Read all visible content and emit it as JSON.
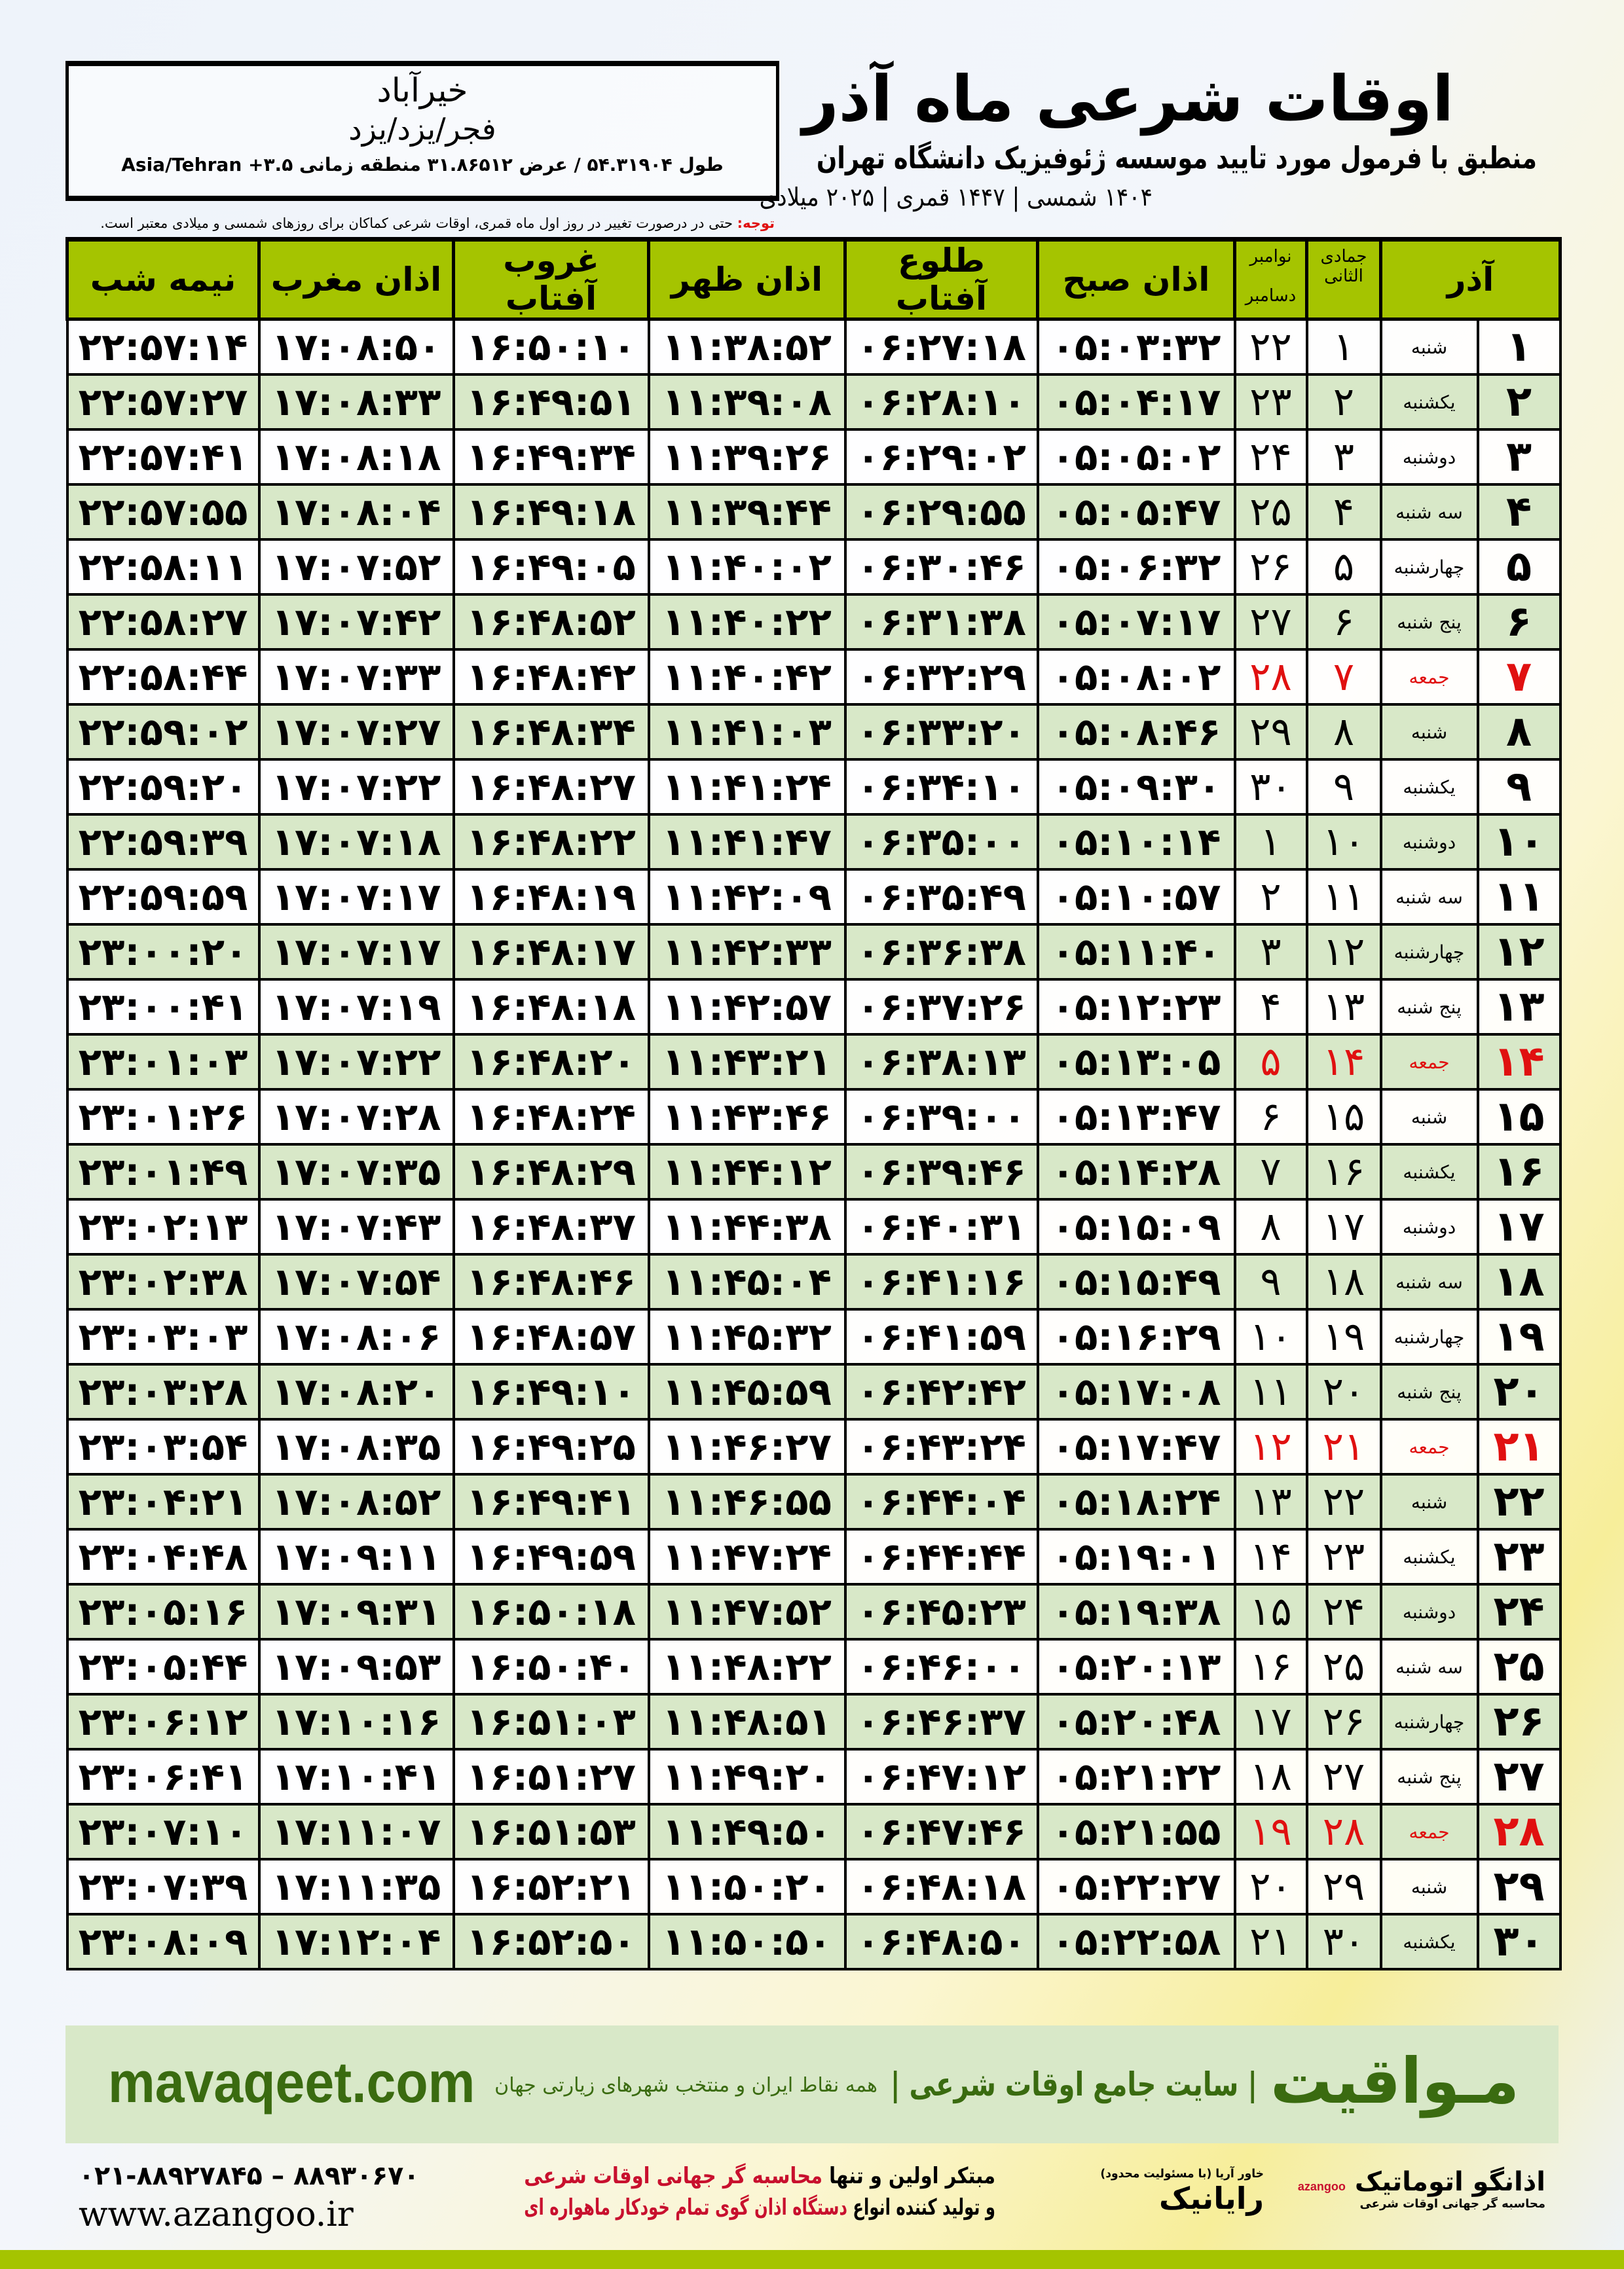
{
  "header": {
    "city": "خیرآباد",
    "path": "فجر/یزد/یزد",
    "coords": "طول ۵۴.۳۱۹۰۴ / عرض ۳۱.۸۶۵۱۲ منطقه زمانی ۳.۵+ Asia/Tehran",
    "title": "اوقات شرعی ماه آذر",
    "subtitle": "منطبق با فرمول مورد تایید موسسه ژئوفیزیک دانشگاه تهران",
    "dateline": "۱۴۰۴ شمسی | ۱۴۴۷ قمری | ۲۰۲۵ میلادی",
    "note_label": "توجه:",
    "note": " حتی در درصورت تغییر در روز اول ماه قمری، اوقات شرعی کماکان برای روزهای شمسی و میلادی معتبر است."
  },
  "columns": {
    "month": "آذر",
    "hijri": "جمادی الثانی",
    "greg_top": "نوامبر",
    "greg_bottom": "دسامبر",
    "sobh": "اذان صبح",
    "tolu": "طلوع آفتاب",
    "zohr": "اذان ظهر",
    "ghurub": "غروب آفتاب",
    "maghrib": "اذان مغرب",
    "nimeh": "نیمه شب"
  },
  "colors": {
    "accent": "#a5c400",
    "row_alt": "#d8e8c8",
    "friday": "#e01010",
    "brand": "#3a6b10"
  },
  "rows": [
    [
      "۱",
      "شنبه",
      "۱",
      "۲۲",
      "۰۵:۰۳:۳۲",
      "۰۶:۲۷:۱۸",
      "۱۱:۳۸:۵۲",
      "۱۶:۵۰:۱۰",
      "۱۷:۰۸:۵۰",
      "۲۲:۵۷:۱۴"
    ],
    [
      "۲",
      "یکشنبه",
      "۲",
      "۲۳",
      "۰۵:۰۴:۱۷",
      "۰۶:۲۸:۱۰",
      "۱۱:۳۹:۰۸",
      "۱۶:۴۹:۵۱",
      "۱۷:۰۸:۳۳",
      "۲۲:۵۷:۲۷"
    ],
    [
      "۳",
      "دوشنبه",
      "۳",
      "۲۴",
      "۰۵:۰۵:۰۲",
      "۰۶:۲۹:۰۲",
      "۱۱:۳۹:۲۶",
      "۱۶:۴۹:۳۴",
      "۱۷:۰۸:۱۸",
      "۲۲:۵۷:۴۱"
    ],
    [
      "۴",
      "سه شنبه",
      "۴",
      "۲۵",
      "۰۵:۰۵:۴۷",
      "۰۶:۲۹:۵۵",
      "۱۱:۳۹:۴۴",
      "۱۶:۴۹:۱۸",
      "۱۷:۰۸:۰۴",
      "۲۲:۵۷:۵۵"
    ],
    [
      "۵",
      "چهارشنبه",
      "۵",
      "۲۶",
      "۰۵:۰۶:۳۲",
      "۰۶:۳۰:۴۶",
      "۱۱:۴۰:۰۲",
      "۱۶:۴۹:۰۵",
      "۱۷:۰۷:۵۲",
      "۲۲:۵۸:۱۱"
    ],
    [
      "۶",
      "پنج شنبه",
      "۶",
      "۲۷",
      "۰۵:۰۷:۱۷",
      "۰۶:۳۱:۳۸",
      "۱۱:۴۰:۲۲",
      "۱۶:۴۸:۵۲",
      "۱۷:۰۷:۴۲",
      "۲۲:۵۸:۲۷"
    ],
    [
      "۷",
      "جمعه",
      "۷",
      "۲۸",
      "۰۵:۰۸:۰۲",
      "۰۶:۳۲:۲۹",
      "۱۱:۴۰:۴۲",
      "۱۶:۴۸:۴۲",
      "۱۷:۰۷:۳۳",
      "۲۲:۵۸:۴۴"
    ],
    [
      "۸",
      "شنبه",
      "۸",
      "۲۹",
      "۰۵:۰۸:۴۶",
      "۰۶:۳۳:۲۰",
      "۱۱:۴۱:۰۳",
      "۱۶:۴۸:۳۴",
      "۱۷:۰۷:۲۷",
      "۲۲:۵۹:۰۲"
    ],
    [
      "۹",
      "یکشنبه",
      "۹",
      "۳۰",
      "۰۵:۰۹:۳۰",
      "۰۶:۳۴:۱۰",
      "۱۱:۴۱:۲۴",
      "۱۶:۴۸:۲۷",
      "۱۷:۰۷:۲۲",
      "۲۲:۵۹:۲۰"
    ],
    [
      "۱۰",
      "دوشنبه",
      "۱۰",
      "۱",
      "۰۵:۱۰:۱۴",
      "۰۶:۳۵:۰۰",
      "۱۱:۴۱:۴۷",
      "۱۶:۴۸:۲۲",
      "۱۷:۰۷:۱۸",
      "۲۲:۵۹:۳۹"
    ],
    [
      "۱۱",
      "سه شنبه",
      "۱۱",
      "۲",
      "۰۵:۱۰:۵۷",
      "۰۶:۳۵:۴۹",
      "۱۱:۴۲:۰۹",
      "۱۶:۴۸:۱۹",
      "۱۷:۰۷:۱۷",
      "۲۲:۵۹:۵۹"
    ],
    [
      "۱۲",
      "چهارشنبه",
      "۱۲",
      "۳",
      "۰۵:۱۱:۴۰",
      "۰۶:۳۶:۳۸",
      "۱۱:۴۲:۳۳",
      "۱۶:۴۸:۱۷",
      "۱۷:۰۷:۱۷",
      "۲۳:۰۰:۲۰"
    ],
    [
      "۱۳",
      "پنج شنبه",
      "۱۳",
      "۴",
      "۰۵:۱۲:۲۳",
      "۰۶:۳۷:۲۶",
      "۱۱:۴۲:۵۷",
      "۱۶:۴۸:۱۸",
      "۱۷:۰۷:۱۹",
      "۲۳:۰۰:۴۱"
    ],
    [
      "۱۴",
      "جمعه",
      "۱۴",
      "۵",
      "۰۵:۱۳:۰۵",
      "۰۶:۳۸:۱۳",
      "۱۱:۴۳:۲۱",
      "۱۶:۴۸:۲۰",
      "۱۷:۰۷:۲۲",
      "۲۳:۰۱:۰۳"
    ],
    [
      "۱۵",
      "شنبه",
      "۱۵",
      "۶",
      "۰۵:۱۳:۴۷",
      "۰۶:۳۹:۰۰",
      "۱۱:۴۳:۴۶",
      "۱۶:۴۸:۲۴",
      "۱۷:۰۷:۲۸",
      "۲۳:۰۱:۲۶"
    ],
    [
      "۱۶",
      "یکشنبه",
      "۱۶",
      "۷",
      "۰۵:۱۴:۲۸",
      "۰۶:۳۹:۴۶",
      "۱۱:۴۴:۱۲",
      "۱۶:۴۸:۲۹",
      "۱۷:۰۷:۳۵",
      "۲۳:۰۱:۴۹"
    ],
    [
      "۱۷",
      "دوشنبه",
      "۱۷",
      "۸",
      "۰۵:۱۵:۰۹",
      "۰۶:۴۰:۳۱",
      "۱۱:۴۴:۳۸",
      "۱۶:۴۸:۳۷",
      "۱۷:۰۷:۴۳",
      "۲۳:۰۲:۱۳"
    ],
    [
      "۱۸",
      "سه شنبه",
      "۱۸",
      "۹",
      "۰۵:۱۵:۴۹",
      "۰۶:۴۱:۱۶",
      "۱۱:۴۵:۰۴",
      "۱۶:۴۸:۴۶",
      "۱۷:۰۷:۵۴",
      "۲۳:۰۲:۳۸"
    ],
    [
      "۱۹",
      "چهارشنبه",
      "۱۹",
      "۱۰",
      "۰۵:۱۶:۲۹",
      "۰۶:۴۱:۵۹",
      "۱۱:۴۵:۳۲",
      "۱۶:۴۸:۵۷",
      "۱۷:۰۸:۰۶",
      "۲۳:۰۳:۰۳"
    ],
    [
      "۲۰",
      "پنج شنبه",
      "۲۰",
      "۱۱",
      "۰۵:۱۷:۰۸",
      "۰۶:۴۲:۴۲",
      "۱۱:۴۵:۵۹",
      "۱۶:۴۹:۱۰",
      "۱۷:۰۸:۲۰",
      "۲۳:۰۳:۲۸"
    ],
    [
      "۲۱",
      "جمعه",
      "۲۱",
      "۱۲",
      "۰۵:۱۷:۴۷",
      "۰۶:۴۳:۲۴",
      "۱۱:۴۶:۲۷",
      "۱۶:۴۹:۲۵",
      "۱۷:۰۸:۳۵",
      "۲۳:۰۳:۵۴"
    ],
    [
      "۲۲",
      "شنبه",
      "۲۲",
      "۱۳",
      "۰۵:۱۸:۲۴",
      "۰۶:۴۴:۰۴",
      "۱۱:۴۶:۵۵",
      "۱۶:۴۹:۴۱",
      "۱۷:۰۸:۵۲",
      "۲۳:۰۴:۲۱"
    ],
    [
      "۲۳",
      "یکشنبه",
      "۲۳",
      "۱۴",
      "۰۵:۱۹:۰۱",
      "۰۶:۴۴:۴۴",
      "۱۱:۴۷:۲۴",
      "۱۶:۴۹:۵۹",
      "۱۷:۰۹:۱۱",
      "۲۳:۰۴:۴۸"
    ],
    [
      "۲۴",
      "دوشنبه",
      "۲۴",
      "۱۵",
      "۰۵:۱۹:۳۸",
      "۰۶:۴۵:۲۳",
      "۱۱:۴۷:۵۲",
      "۱۶:۵۰:۱۸",
      "۱۷:۰۹:۳۱",
      "۲۳:۰۵:۱۶"
    ],
    [
      "۲۵",
      "سه شنبه",
      "۲۵",
      "۱۶",
      "۰۵:۲۰:۱۳",
      "۰۶:۴۶:۰۰",
      "۱۱:۴۸:۲۲",
      "۱۶:۵۰:۴۰",
      "۱۷:۰۹:۵۳",
      "۲۳:۰۵:۴۴"
    ],
    [
      "۲۶",
      "چهارشنبه",
      "۲۶",
      "۱۷",
      "۰۵:۲۰:۴۸",
      "۰۶:۴۶:۳۷",
      "۱۱:۴۸:۵۱",
      "۱۶:۵۱:۰۳",
      "۱۷:۱۰:۱۶",
      "۲۳:۰۶:۱۲"
    ],
    [
      "۲۷",
      "پنج شنبه",
      "۲۷",
      "۱۸",
      "۰۵:۲۱:۲۲",
      "۰۶:۴۷:۱۲",
      "۱۱:۴۹:۲۰",
      "۱۶:۵۱:۲۷",
      "۱۷:۱۰:۴۱",
      "۲۳:۰۶:۴۱"
    ],
    [
      "۲۸",
      "جمعه",
      "۲۸",
      "۱۹",
      "۰۵:۲۱:۵۵",
      "۰۶:۴۷:۴۶",
      "۱۱:۴۹:۵۰",
      "۱۶:۵۱:۵۳",
      "۱۷:۱۱:۰۷",
      "۲۳:۰۷:۱۰"
    ],
    [
      "۲۹",
      "شنبه",
      "۲۹",
      "۲۰",
      "۰۵:۲۲:۲۷",
      "۰۶:۴۸:۱۸",
      "۱۱:۵۰:۲۰",
      "۱۶:۵۲:۲۱",
      "۱۷:۱۱:۳۵",
      "۲۳:۰۷:۳۹"
    ],
    [
      "۳۰",
      "یکشنبه",
      "۳۰",
      "۲۱",
      "۰۵:۲۲:۵۸",
      "۰۶:۴۸:۵۰",
      "۱۱:۵۰:۵۰",
      "۱۶:۵۲:۵۰",
      "۱۷:۱۲:۰۴",
      "۲۳:۰۸:۰۹"
    ]
  ],
  "friday_label": "جمعه",
  "footer": {
    "brand": "مـواقیت",
    "tagline": "| سایت جامع اوقات شرعی |",
    "tagline2": "همه نقاط ایران و منتخب شهرهای زیارتی جهان",
    "site": "mavaqeet.com",
    "phone": "۰۲۱-۸۸۹۲۷۸۴۵ – ۸۸۹۳۰۶۷۰",
    "www": "www.azangoo.ir",
    "promo1a": "مبتکر اولین و تنها ",
    "promo1b": "محاسبه گر جهانی اوقات شرعی",
    "promo2a": "و تولید کننده انواع ",
    "promo2b": "دستگاه اذان گوی تمام خودکار ماهواره ای",
    "logo1": "رایانیک",
    "logo1_sub": "خاور آریا (با مسئولیت محدود)",
    "logo2": "اذانگو اتوماتیک",
    "logo2_sub": "محاسبه گر جهانی اوقات شرعی",
    "logo2_en": "azangoo"
  }
}
